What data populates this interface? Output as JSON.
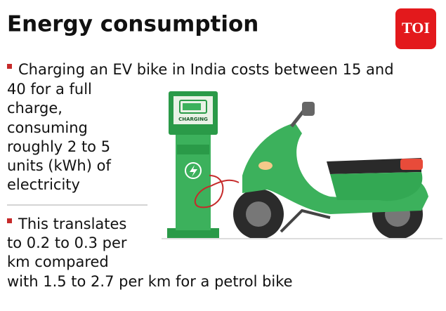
{
  "header": {
    "title": "Energy consumption",
    "logo": "TOI"
  },
  "bullets": [
    {
      "lines": [
        "Charging an EV bike in India costs between 15 and",
        "40 for a full",
        "charge,",
        "consuming",
        "roughly 2 to 5",
        "units (kWh) of",
        "electricity"
      ]
    },
    {
      "lines": [
        "This translates",
        "to 0.2 to 0.3 per",
        "km compared",
        "with 1.5 to 2.7 per km for a petrol bike"
      ]
    }
  ],
  "illustration": {
    "charger_label": "CHARGING"
  }
}
